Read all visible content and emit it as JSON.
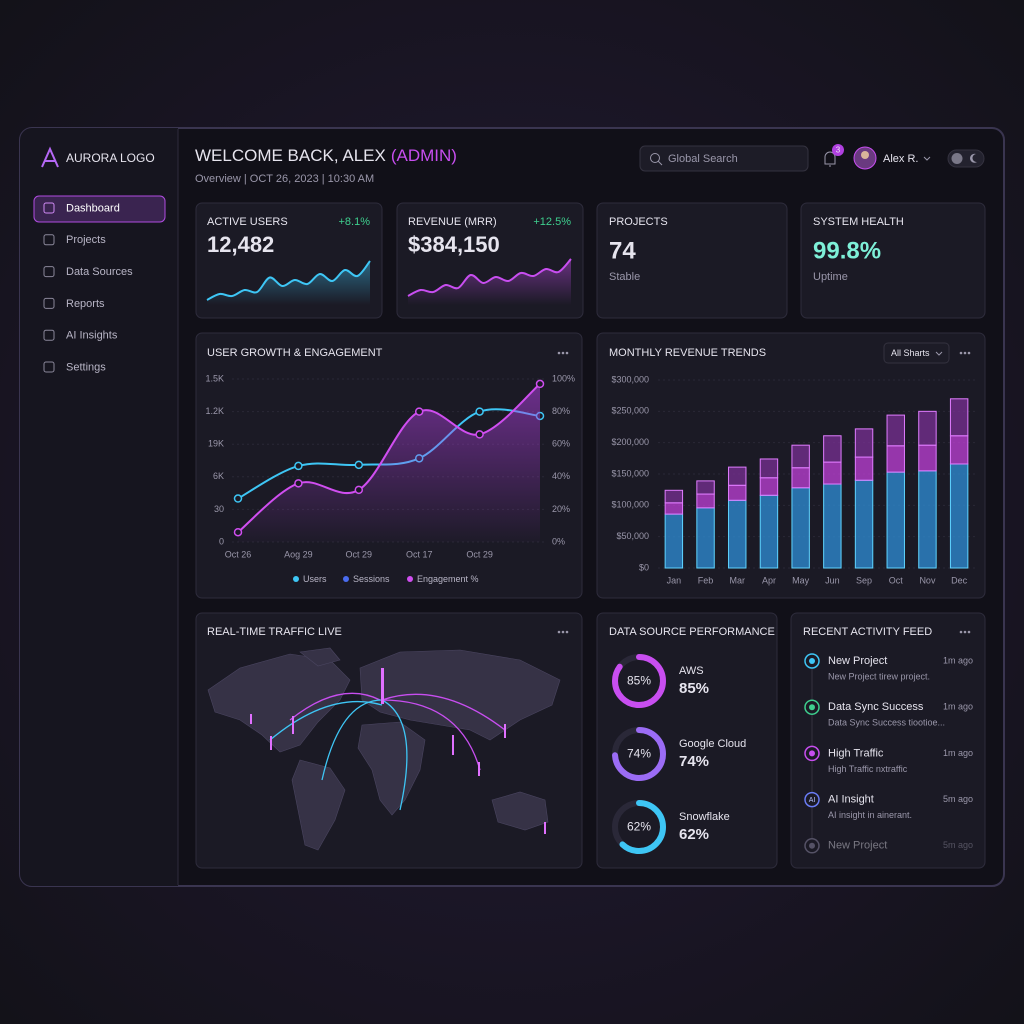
{
  "sidebar": {
    "logo": "AURORA LOGO",
    "nav": [
      "Dashboard",
      "Projects",
      "Data Sources",
      "Reports",
      "AI Insights",
      "Settings"
    ],
    "active": 0
  },
  "header": {
    "title": "WELCOME BACK, ALEX",
    "role": "(ADMIN)",
    "subtitle": "Overview | OCT 26, 2023 | 10:30 AM",
    "search": "Global Search",
    "notifications": 3,
    "user": "Alex R."
  },
  "kpis": [
    {
      "label": "ACTIVE USERS",
      "value": "12,482",
      "change": "+8.1%",
      "sparkline": {
        "color": "#3ec6f5",
        "ylim": [
          0,
          100
        ],
        "values": [
          10,
          22,
          18,
          30,
          26,
          55,
          38,
          50,
          42,
          62,
          48,
          70,
          58,
          88
        ]
      }
    },
    {
      "label": "REVENUE (MRR)",
      "value": "$384,150",
      "change": "+12.5%",
      "sparkline": {
        "color": "#c84ef0",
        "ylim": [
          0,
          100
        ],
        "values": [
          18,
          30,
          26,
          40,
          34,
          60,
          44,
          56,
          48,
          64,
          58,
          72,
          66,
          92
        ]
      }
    },
    {
      "label": "PROJECTS",
      "value": 74,
      "note": "Stable"
    },
    {
      "label": "SYSTEM HEALTH",
      "value": "99.8%",
      "note": "Uptime"
    }
  ],
  "growth_chart": {
    "type": "line",
    "title": "USER GROWTH & ENGAGEMENT",
    "categories": [
      "Oct 26",
      "Aog 29",
      "Oct 29",
      "Oct 17",
      "Oct 29",
      null
    ],
    "series": [
      {
        "name": "Users",
        "color": "#3ec6f5",
        "values": [
          400,
          700,
          710,
          770,
          1200,
          1160
        ]
      },
      {
        "name": "Sessions",
        "color": "#4a6cf0",
        "values": [
          null,
          null,
          null,
          null,
          null,
          null
        ]
      },
      {
        "name": "Engagement %",
        "color": "#d04ef0",
        "axis": "y2",
        "area": true,
        "values": [
          6,
          36,
          32,
          80,
          66,
          97
        ]
      }
    ],
    "ylim": [
      0,
      1500
    ],
    "yticks": [
      0,
      {
        "value": 300,
        "label": "30"
      },
      {
        "value": 600,
        "label": "6K"
      },
      {
        "value": 900,
        "label": "19K"
      },
      {
        "value": 1200,
        "label": "1.2K"
      },
      {
        "value": 1500,
        "label": "1.5K"
      }
    ],
    "y2lim": [
      0,
      100
    ],
    "y2ticks": [
      {
        "value": 0,
        "label": "0%"
      },
      {
        "value": 20,
        "label": "20%"
      },
      {
        "value": 40,
        "label": "40%"
      },
      {
        "value": 60,
        "label": "60%"
      },
      {
        "value": 80,
        "label": "80%"
      },
      {
        "value": 100,
        "label": "100%"
      }
    ],
    "grid": true
  },
  "revenue_chart": {
    "type": "stacked_bar",
    "title": "MONTHLY REVENUE TRENDS",
    "control": "All Sharts",
    "categories": [
      "Jan",
      "Feb",
      "Mar",
      "Apr",
      "May",
      "Jun",
      "Sep",
      "Oct",
      "Nov",
      "Dec"
    ],
    "series": [
      {
        "color": "#2f8fd8",
        "values": [
          86000,
          96000,
          108000,
          116000,
          128000,
          134000,
          140000,
          153000,
          155000,
          166000
        ]
      },
      {
        "color": "#c040d8",
        "values": [
          18000,
          22000,
          24000,
          28000,
          32000,
          35000,
          37000,
          42000,
          41000,
          45000
        ]
      },
      {
        "color": "#7a3094",
        "values": [
          20000,
          21000,
          29000,
          30000,
          36000,
          42000,
          45000,
          49000,
          54000,
          59000
        ]
      }
    ],
    "ylim": [
      0,
      300000
    ],
    "yticks": [
      {
        "value": 0,
        "label": "$0"
      },
      {
        "value": 50000,
        "label": "$50,000"
      },
      {
        "value": 100000,
        "label": "$100,000"
      },
      {
        "value": 150000,
        "label": "$150,000"
      },
      {
        "value": 200000,
        "label": "$200,000"
      },
      {
        "value": 250000,
        "label": "$250,000"
      },
      {
        "value": 300000,
        "label": "$300,000"
      }
    ],
    "grid": true
  },
  "traffic": {
    "title": "REAL-TIME TRAFFIC LIVE"
  },
  "data_sources": {
    "type": "donut",
    "title": "DATA SOURCE PERFORMANCE",
    "items": [
      {
        "name": "AWS",
        "value": 85,
        "value_label": "85%",
        "color": "#c84ef0"
      },
      {
        "name": "Google Cloud",
        "value": 74,
        "value_label": "74%",
        "color": "#9b6cf5"
      },
      {
        "name": "Snowflake",
        "value": 62,
        "value_label": "62%",
        "color": "#3ec6f5"
      }
    ]
  },
  "activity": {
    "title": "RECENT ACTIVITY FEED",
    "items": [
      {
        "title": "New Project",
        "time": "1m ago",
        "desc": "New Project tirew project.",
        "color": "#3ec6f5"
      },
      {
        "title": "Data Sync Success",
        "time": "1m ago",
        "desc": "Data Sync Success tiootioe...",
        "color": "#3ecf8e"
      },
      {
        "title": "High Traffic",
        "time": "1m ago",
        "desc": "High Traffic nxtraffic",
        "color": "#c84ef0"
      },
      {
        "title": "AI Insight",
        "time": "5m ago",
        "desc": "AI insight in ainerant.",
        "color": "#6a7cf5",
        "icon": "AI"
      },
      {
        "title": "New Project",
        "time": "5m ago",
        "color": "#555266"
      }
    ]
  }
}
